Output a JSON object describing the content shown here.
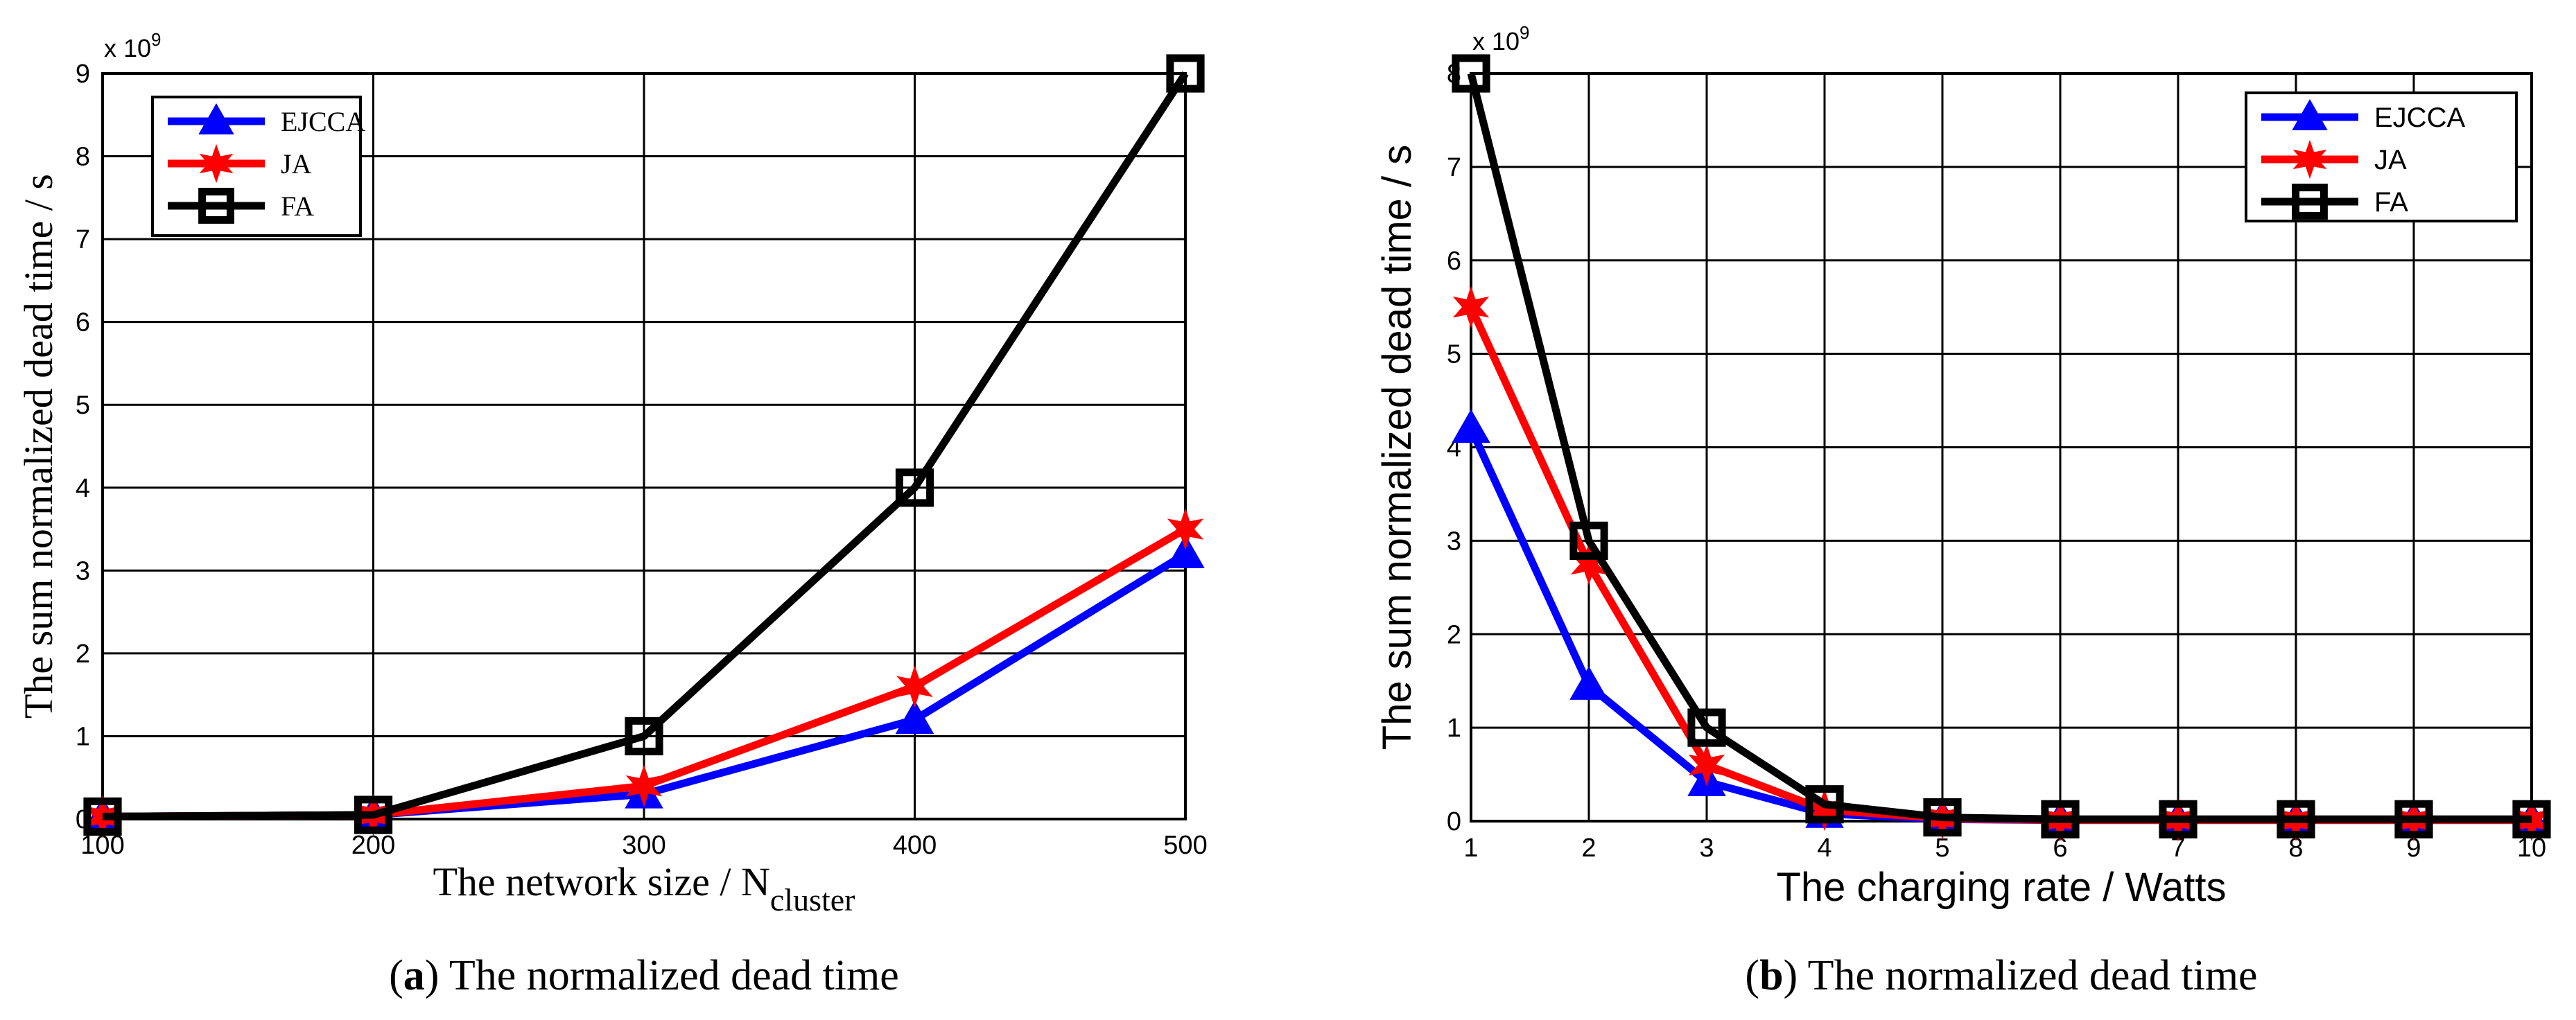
{
  "chart_data": [
    {
      "type": "line",
      "caption_label": "a",
      "caption_text": "The normalized dead time",
      "xlabel": "The network size / N",
      "xlabel_sub": "cluster",
      "ylabel": "The sum normalized dead time / s",
      "y_exponent_base": "x 10",
      "y_exponent_power": "9",
      "x": [
        100,
        200,
        300,
        400,
        500
      ],
      "xticks": [
        "100",
        "200",
        "300",
        "400",
        "500"
      ],
      "yticks": [
        "0",
        "1",
        "2",
        "3",
        "4",
        "5",
        "6",
        "7",
        "8",
        "9"
      ],
      "xlim": [
        100,
        500
      ],
      "ylim": [
        0,
        9
      ],
      "grid": true,
      "legend_position": "top-left",
      "series": [
        {
          "name": "EJCCA",
          "color": "#0000ff",
          "marker": "triangle",
          "values": [
            0.03,
            0.05,
            0.3,
            1.2,
            3.2
          ]
        },
        {
          "name": "JA",
          "color": "#ff0000",
          "marker": "star",
          "values": [
            0.03,
            0.05,
            0.4,
            1.6,
            3.5
          ]
        },
        {
          "name": "FA",
          "color": "#000000",
          "marker": "square",
          "values": [
            0.03,
            0.05,
            1.0,
            4.0,
            9.0
          ]
        }
      ]
    },
    {
      "type": "line",
      "caption_label": "b",
      "caption_text": "The normalized dead time",
      "xlabel": "The charging rate / Watts",
      "ylabel": "The sum normalized dead time / s",
      "y_exponent_base": "x 10",
      "y_exponent_power": "9",
      "x": [
        1,
        2,
        3,
        4,
        5,
        6,
        7,
        8,
        9,
        10
      ],
      "xticks": [
        "1",
        "2",
        "3",
        "4",
        "5",
        "6",
        "7",
        "8",
        "9",
        "10"
      ],
      "yticks": [
        "0",
        "1",
        "2",
        "3",
        "4",
        "5",
        "6",
        "7",
        "8"
      ],
      "xlim": [
        1,
        10
      ],
      "ylim": [
        0,
        8
      ],
      "grid": true,
      "legend_position": "top-right",
      "series": [
        {
          "name": "EJCCA",
          "color": "#0000ff",
          "marker": "triangle",
          "values": [
            4.2,
            1.45,
            0.42,
            0.08,
            0.02,
            0.01,
            0.01,
            0.01,
            0.01,
            0.01
          ]
        },
        {
          "name": "JA",
          "color": "#ff0000",
          "marker": "star",
          "values": [
            5.5,
            2.75,
            0.6,
            0.12,
            0.03,
            0.01,
            0.01,
            0.01,
            0.01,
            0.01
          ]
        },
        {
          "name": "FA",
          "color": "#000000",
          "marker": "square",
          "values": [
            8.0,
            3.0,
            1.0,
            0.18,
            0.04,
            0.02,
            0.02,
            0.02,
            0.02,
            0.02
          ]
        }
      ]
    }
  ]
}
